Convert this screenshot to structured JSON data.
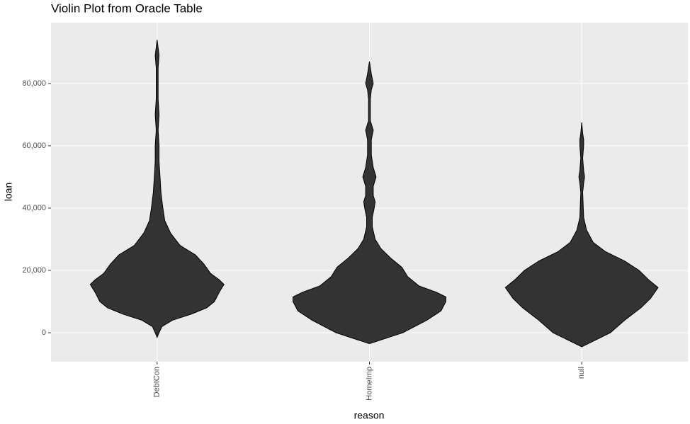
{
  "chart_data": {
    "type": "violin",
    "title": "Violin Plot from Oracle Table",
    "x_label": "reason",
    "y_label": "loan",
    "categories": [
      "DebtCon",
      "HomeImp",
      "null"
    ],
    "color": "#333333",
    "ylim": [
      -9300,
      99500
    ],
    "yticks": [
      0,
      {
        "value": 20000,
        "label": "20,000"
      },
      {
        "value": 40000,
        "label": "40,000"
      },
      {
        "value": 60000,
        "label": "60,000"
      },
      {
        "value": 80000,
        "label": "80,000"
      }
    ],
    "grid": true,
    "violins": [
      {
        "y": [
          -1500,
          0,
          2000,
          4000,
          6000,
          8000,
          10000,
          13000,
          15500,
          17000,
          19000,
          22000,
          25000,
          28000,
          32000,
          36000,
          40000,
          45000,
          50000,
          55000,
          60000,
          65000,
          70000,
          75000,
          80000,
          85000,
          89000,
          94000
        ],
        "density": [
          0,
          0.02,
          0.05,
          0.16,
          0.36,
          0.52,
          0.6,
          0.65,
          0.7,
          0.65,
          0.56,
          0.49,
          0.4,
          0.24,
          0.14,
          0.08,
          0.06,
          0.04,
          0.03,
          0.02,
          0.02,
          0.01,
          0.02,
          0.01,
          0.01,
          0.01,
          0.02,
          0
        ]
      },
      {
        "y": [
          -3500,
          0,
          4000,
          7000,
          10000,
          11500,
          13000,
          15000,
          18000,
          21000,
          24000,
          27000,
          30000,
          34000,
          37000,
          40000,
          42000,
          44000,
          47000,
          50000,
          53000,
          57000,
          62000,
          65000,
          68000,
          75000,
          78000,
          80000,
          83000,
          87000
        ],
        "density": [
          0,
          0.35,
          0.6,
          0.75,
          0.8,
          0.8,
          0.7,
          0.52,
          0.4,
          0.34,
          0.22,
          0.12,
          0.06,
          0.03,
          0.03,
          0.05,
          0.06,
          0.04,
          0.04,
          0.07,
          0.04,
          0.02,
          0.02,
          0.04,
          0.01,
          0.01,
          0.02,
          0.04,
          0.02,
          0
        ]
      },
      {
        "y": [
          -4500,
          0,
          4000,
          8000,
          11000,
          14500,
          17000,
          20000,
          23000,
          26000,
          29000,
          33000,
          37000,
          45000,
          48000,
          50000,
          52000,
          56000,
          60000,
          62000,
          64000,
          67500
        ],
        "density": [
          0,
          0.3,
          0.45,
          0.62,
          0.72,
          0.8,
          0.7,
          0.6,
          0.45,
          0.25,
          0.12,
          0.05,
          0.02,
          0.01,
          0.02,
          0.03,
          0.02,
          0.01,
          0.02,
          0.02,
          0.01,
          0
        ]
      }
    ]
  }
}
